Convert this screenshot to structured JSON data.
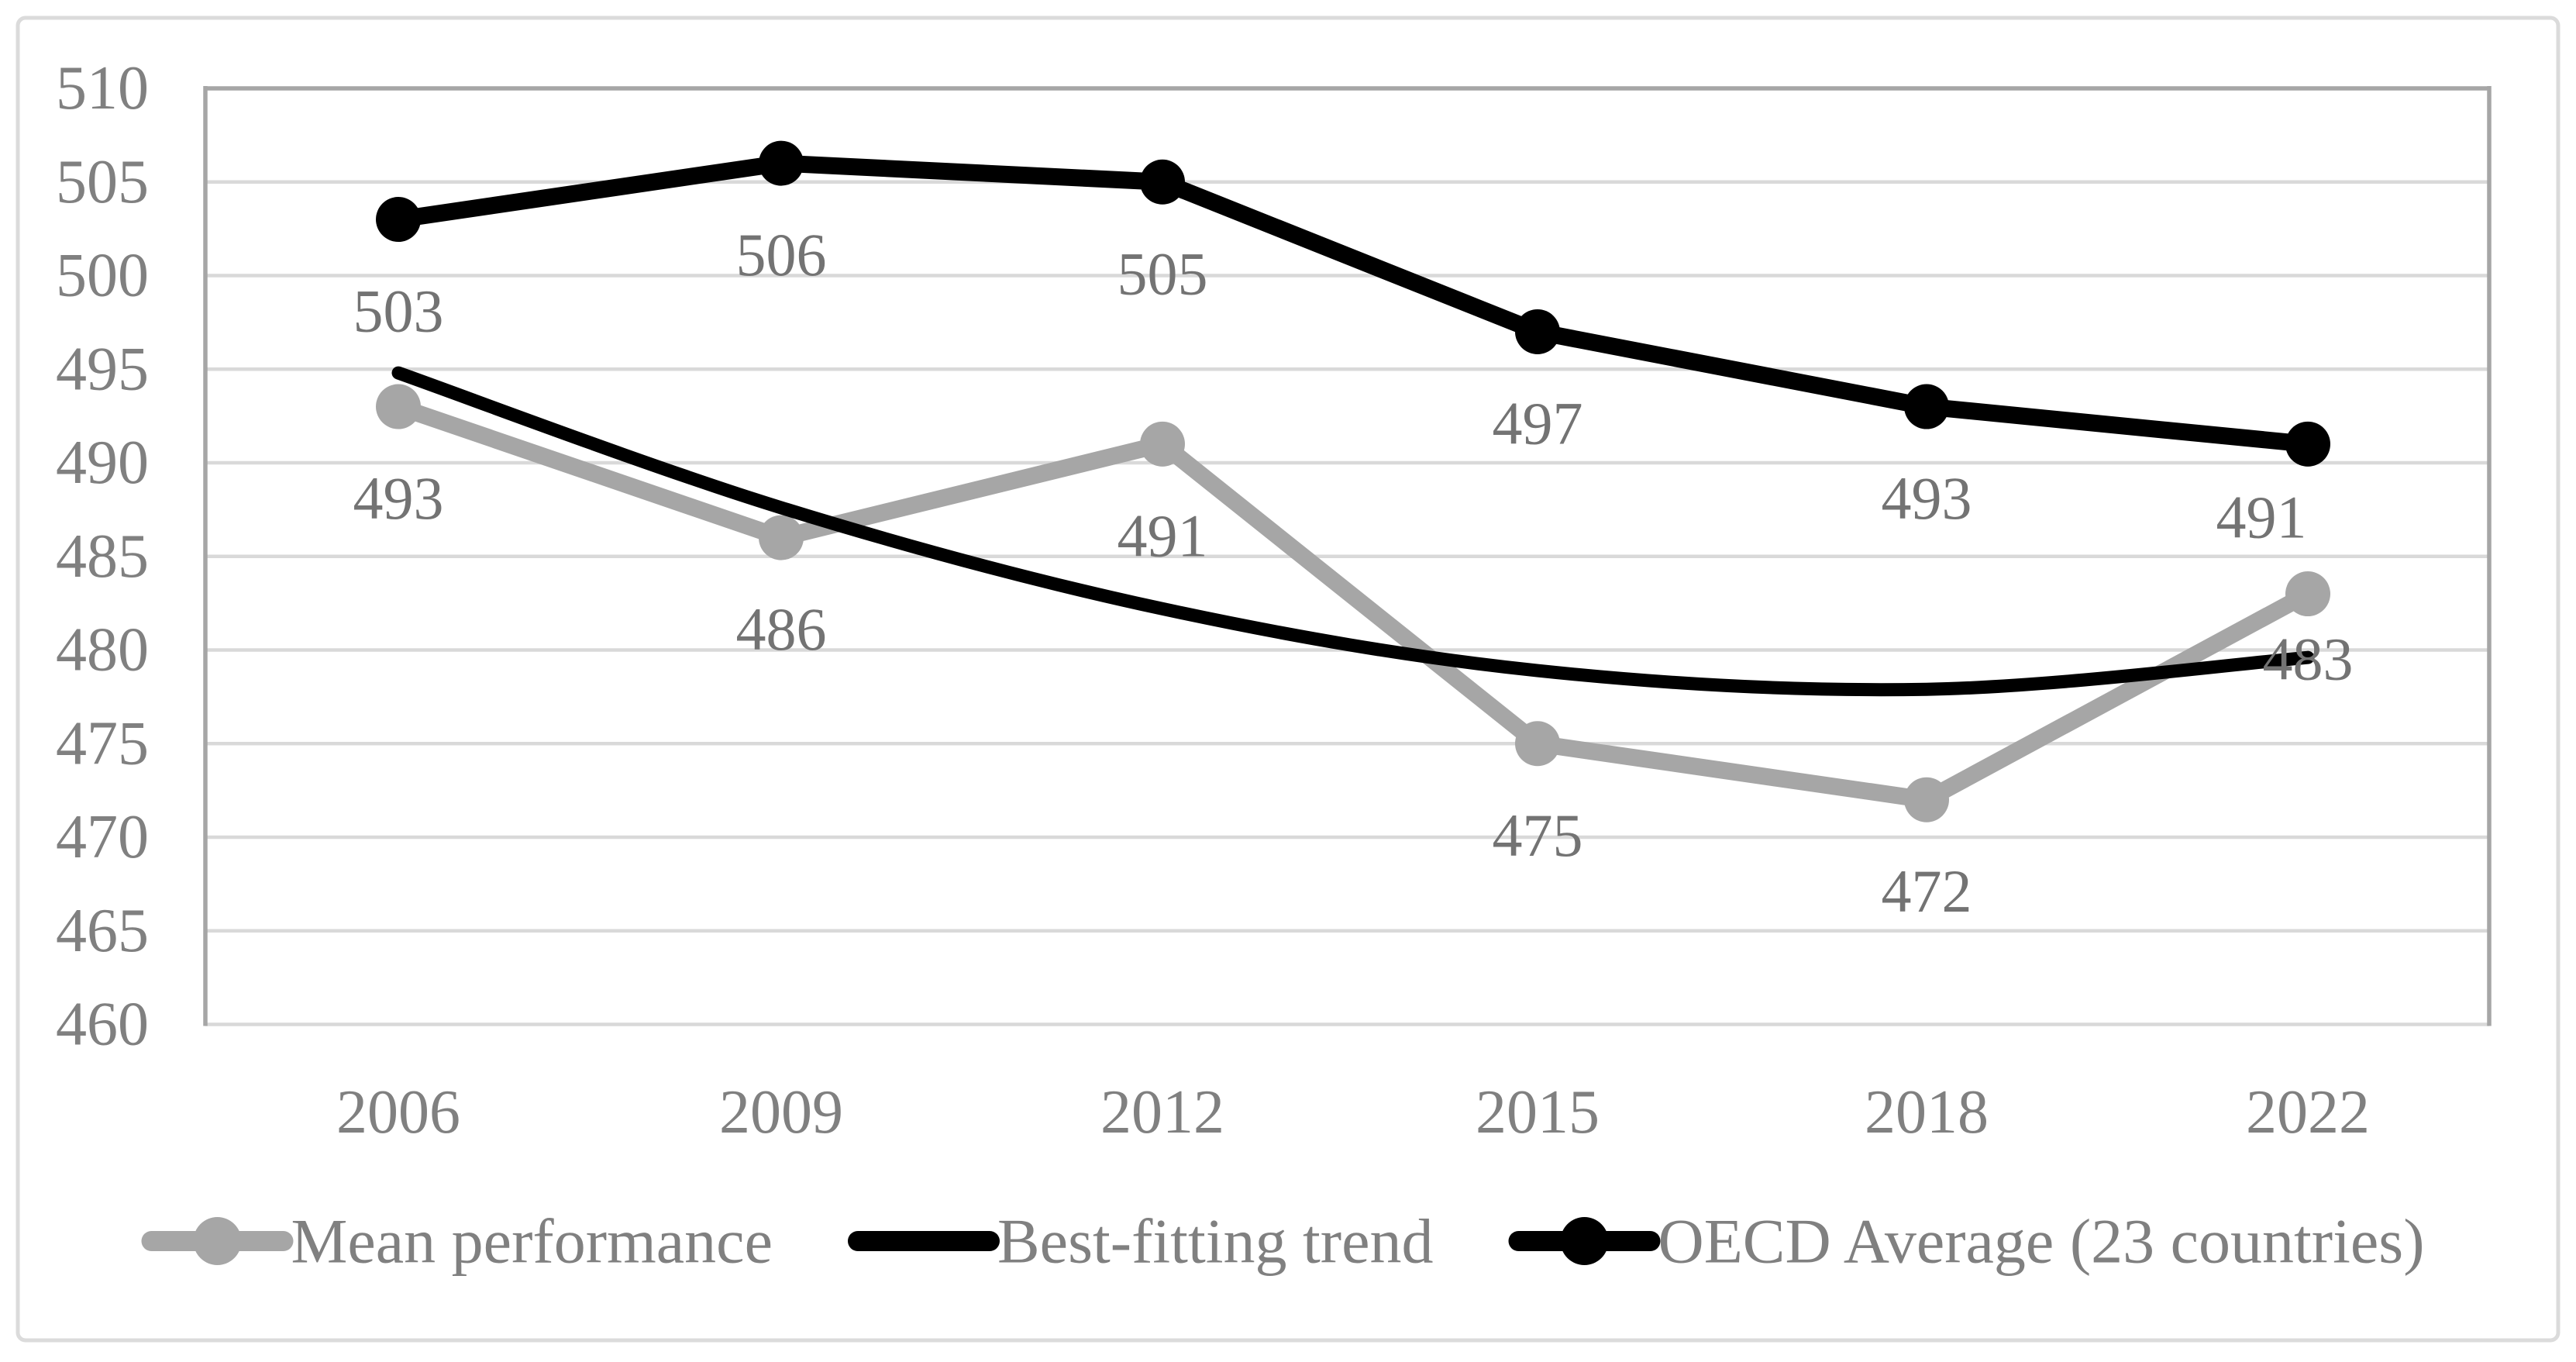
{
  "figure": {
    "background": "#FFFFFF",
    "frame_color": "#DBDBDB"
  },
  "chart_data": {
    "type": "line",
    "title": "",
    "categories": [
      "2006",
      "2009",
      "2012",
      "2015",
      "2018",
      "2022"
    ],
    "series": [
      {
        "name": "Mean performance",
        "values": [
          493,
          486,
          491,
          475,
          472,
          483
        ],
        "color": "#A6A6A6",
        "line_width": 22,
        "markers": "circle",
        "smooth": false,
        "show_data_labels": true
      },
      {
        "name": "Best-fitting trend",
        "values": [
          494.8,
          487.6,
          482.2,
          478.9,
          477.9,
          479.6
        ],
        "color": "#000000",
        "line_width": 17,
        "markers": "none",
        "smooth": true,
        "show_data_labels": false
      },
      {
        "name": "OECD Average (23 countries)",
        "values": [
          503,
          506,
          505,
          497,
          493,
          491
        ],
        "color": "#000000",
        "line_width": 22,
        "markers": "circle",
        "smooth": false,
        "show_data_labels": true
      }
    ],
    "ylim": [
      460,
      510
    ],
    "ytick_step": 5,
    "y_tick_labels": [
      "510",
      "505",
      "500",
      "495",
      "490",
      "485",
      "480",
      "475",
      "470",
      "465",
      "460"
    ],
    "grid": true,
    "gridline_color": "#D9D9D9",
    "axis_line_color": "#A6A6A6",
    "tick_label_color": "#808080",
    "data_label_color": "#737373",
    "legend_position": "bottom",
    "legend_items": [
      "Mean performance",
      "Best-fitting trend",
      "OECD Average (23 countries)"
    ],
    "label_offsets": {
      "Mean performance": {
        "5": [
          0,
          84
        ]
      },
      "OECD Average (23 countries)": {
        "5": [
          -60,
          94
        ]
      }
    }
  }
}
